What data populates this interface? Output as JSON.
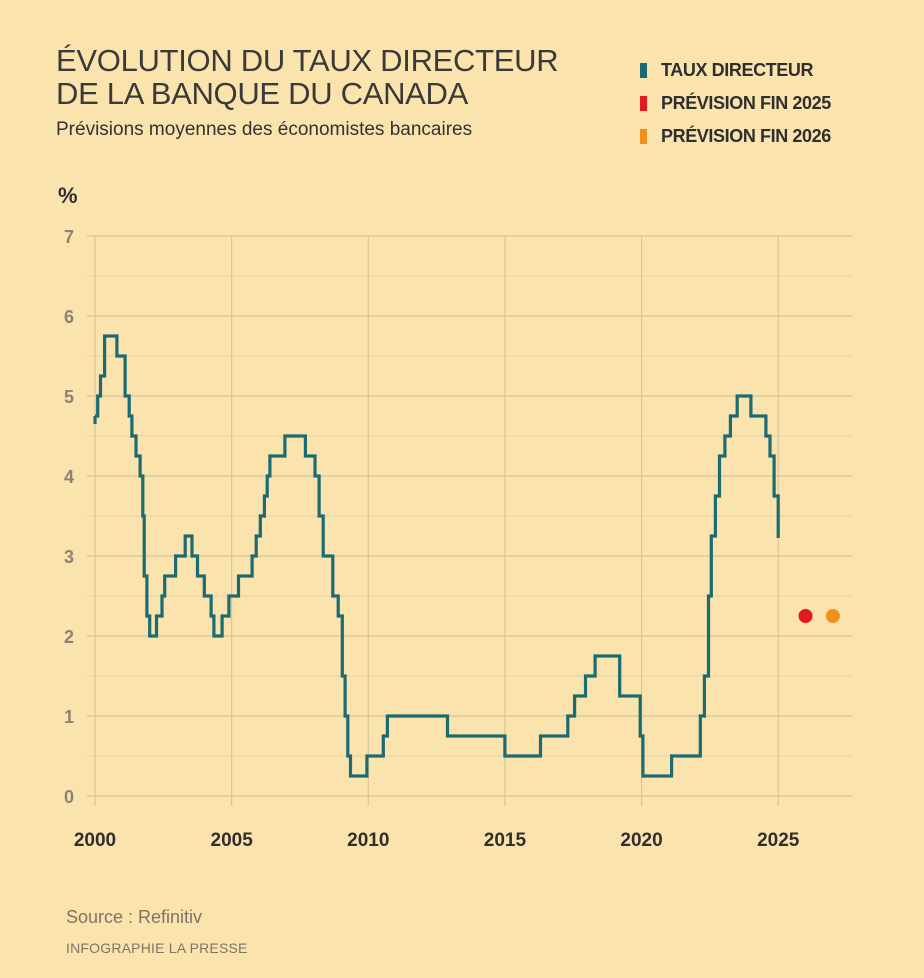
{
  "header": {
    "title_line1": "ÉVOLUTION DU TAUX DIRECTEUR",
    "title_line2": "DE LA BANQUE DU CANADA",
    "subtitle": "Prévisions moyennes des économistes bancaires"
  },
  "legend": [
    {
      "label": "TAUX DIRECTEUR",
      "color": "#1b6b72"
    },
    {
      "label": "PRÉVISION FIN 2025",
      "color": "#e01b24"
    },
    {
      "label": "PRÉVISION FIN 2026",
      "color": "#f0901e"
    }
  ],
  "footer": {
    "source": "Source : Refinitiv",
    "credit": "INFOGRAPHIE LA PRESSE"
  },
  "chart_data": {
    "type": "line",
    "ylabel": "%",
    "ylim": [
      0,
      7
    ],
    "xlim": [
      2000,
      2027.7
    ],
    "yticks": [
      "0",
      "1",
      "2",
      "3",
      "4",
      "5",
      "6",
      "7"
    ],
    "xticks": [
      "2000",
      "2005",
      "2010",
      "2015",
      "2020",
      "2025"
    ],
    "grid": true,
    "legend_position": "top-right",
    "series": [
      {
        "name": "TAUX DIRECTEUR",
        "color": "#1b6b72",
        "step": true,
        "points": [
          [
            2000.0,
            4.75
          ],
          [
            2000.1,
            5.0
          ],
          [
            2000.2,
            5.25
          ],
          [
            2000.35,
            5.75
          ],
          [
            2000.8,
            5.5
          ],
          [
            2001.1,
            5.0
          ],
          [
            2001.25,
            4.75
          ],
          [
            2001.35,
            4.5
          ],
          [
            2001.5,
            4.25
          ],
          [
            2001.65,
            4.0
          ],
          [
            2001.75,
            3.5
          ],
          [
            2001.8,
            2.75
          ],
          [
            2001.9,
            2.25
          ],
          [
            2002.0,
            2.0
          ],
          [
            2002.25,
            2.25
          ],
          [
            2002.45,
            2.5
          ],
          [
            2002.55,
            2.75
          ],
          [
            2002.95,
            3.0
          ],
          [
            2003.3,
            3.25
          ],
          [
            2003.55,
            3.0
          ],
          [
            2003.75,
            2.75
          ],
          [
            2004.0,
            2.5
          ],
          [
            2004.25,
            2.25
          ],
          [
            2004.35,
            2.0
          ],
          [
            2004.65,
            2.25
          ],
          [
            2004.9,
            2.5
          ],
          [
            2005.25,
            2.75
          ],
          [
            2005.75,
            3.0
          ],
          [
            2005.9,
            3.25
          ],
          [
            2006.05,
            3.5
          ],
          [
            2006.2,
            3.75
          ],
          [
            2006.3,
            4.0
          ],
          [
            2006.4,
            4.25
          ],
          [
            2006.95,
            4.5
          ],
          [
            2007.7,
            4.25
          ],
          [
            2008.05,
            4.0
          ],
          [
            2008.2,
            3.5
          ],
          [
            2008.35,
            3.0
          ],
          [
            2008.7,
            2.5
          ],
          [
            2008.9,
            2.25
          ],
          [
            2009.05,
            1.5
          ],
          [
            2009.15,
            1.0
          ],
          [
            2009.25,
            0.5
          ],
          [
            2009.35,
            0.25
          ],
          [
            2009.95,
            0.5
          ],
          [
            2010.55,
            0.75
          ],
          [
            2010.7,
            1.0
          ],
          [
            2012.9,
            0.75
          ],
          [
            2015.0,
            0.5
          ],
          [
            2016.3,
            0.75
          ],
          [
            2017.3,
            1.0
          ],
          [
            2017.55,
            1.25
          ],
          [
            2017.95,
            1.5
          ],
          [
            2018.3,
            1.75
          ],
          [
            2019.2,
            1.25
          ],
          [
            2019.95,
            0.75
          ],
          [
            2020.05,
            0.25
          ],
          [
            2021.1,
            0.5
          ],
          [
            2022.15,
            1.0
          ],
          [
            2022.3,
            1.5
          ],
          [
            2022.45,
            2.5
          ],
          [
            2022.55,
            3.25
          ],
          [
            2022.7,
            3.75
          ],
          [
            2022.85,
            4.25
          ],
          [
            2023.05,
            4.5
          ],
          [
            2023.25,
            4.75
          ],
          [
            2023.5,
            5.0
          ],
          [
            2024.0,
            4.75
          ],
          [
            2024.55,
            4.5
          ],
          [
            2024.7,
            4.25
          ],
          [
            2024.85,
            3.75
          ],
          [
            2025.0,
            3.25
          ]
        ]
      },
      {
        "name": "PRÉVISION FIN 2025",
        "color": "#e01b24",
        "marker": "dot",
        "points": [
          [
            2026.0,
            2.25
          ]
        ]
      },
      {
        "name": "PRÉVISION FIN 2026",
        "color": "#f0901e",
        "marker": "dot",
        "points": [
          [
            2027.0,
            2.25
          ]
        ]
      }
    ]
  }
}
